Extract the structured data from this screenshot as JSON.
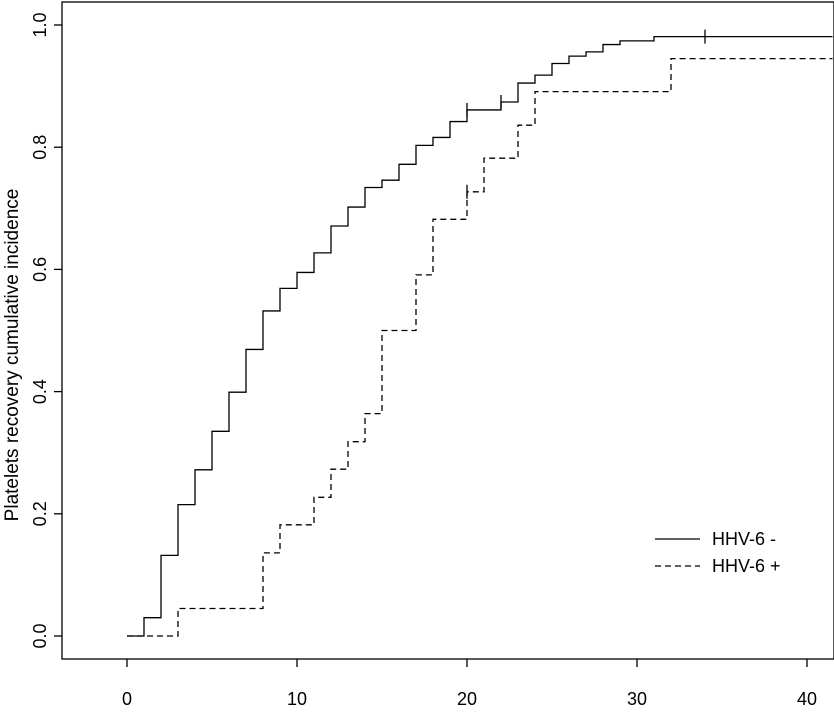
{
  "chart_data": {
    "type": "line",
    "title": "",
    "xlabel": "",
    "ylabel": "Platelets recovery cumulative incidence",
    "xlim": [
      -1.5,
      41.5
    ],
    "ylim": [
      -0.04,
      1.04
    ],
    "xticks": [
      0,
      10,
      20,
      30,
      40
    ],
    "yticks": [
      0.0,
      0.2,
      0.4,
      0.6,
      0.8,
      1.0
    ],
    "xtick_labels": [
      "0",
      "10",
      "20",
      "30",
      "40"
    ],
    "ytick_labels": [
      "0.0",
      "0.2",
      "0.4",
      "0.6",
      "0.8",
      "1.0"
    ],
    "grid": false,
    "legend_position": "bottom-right",
    "series": [
      {
        "name": "HHV-6 -",
        "style": "solid",
        "color": "#000000",
        "step": true,
        "points": [
          [
            0,
            0.0
          ],
          [
            1,
            0.03
          ],
          [
            2,
            0.132
          ],
          [
            3,
            0.215
          ],
          [
            4,
            0.272
          ],
          [
            5,
            0.335
          ],
          [
            6,
            0.399
          ],
          [
            7,
            0.469
          ],
          [
            8,
            0.532
          ],
          [
            9,
            0.569
          ],
          [
            10,
            0.595
          ],
          [
            11,
            0.627
          ],
          [
            12,
            0.671
          ],
          [
            13,
            0.702
          ],
          [
            14,
            0.734
          ],
          [
            15,
            0.746
          ],
          [
            16,
            0.772
          ],
          [
            17,
            0.803
          ],
          [
            18,
            0.816
          ],
          [
            19,
            0.842
          ],
          [
            20,
            0.861
          ],
          [
            22,
            0.874
          ],
          [
            23,
            0.905
          ],
          [
            24,
            0.918
          ],
          [
            25,
            0.937
          ],
          [
            26,
            0.949
          ],
          [
            27,
            0.956
          ],
          [
            28,
            0.968
          ],
          [
            29,
            0.974
          ],
          [
            31,
            0.981
          ],
          [
            41.5,
            0.981
          ]
        ],
        "censored": [
          [
            20,
            0.861
          ],
          [
            22,
            0.874
          ],
          [
            34,
            0.981
          ]
        ]
      },
      {
        "name": "HHV-6 +",
        "style": "dashed",
        "color": "#000000",
        "step": true,
        "points": [
          [
            0,
            0.0
          ],
          [
            3,
            0.045
          ],
          [
            8,
            0.136
          ],
          [
            9,
            0.182
          ],
          [
            11,
            0.227
          ],
          [
            12,
            0.273
          ],
          [
            13,
            0.318
          ],
          [
            14,
            0.364
          ],
          [
            15,
            0.5
          ],
          [
            17,
            0.591
          ],
          [
            18,
            0.682
          ],
          [
            20,
            0.727
          ],
          [
            21,
            0.782
          ],
          [
            23,
            0.836
          ],
          [
            24,
            0.891
          ],
          [
            32,
            0.945
          ],
          [
            41.5,
            0.945
          ]
        ],
        "censored": [
          [
            20,
            0.727
          ]
        ]
      }
    ]
  }
}
